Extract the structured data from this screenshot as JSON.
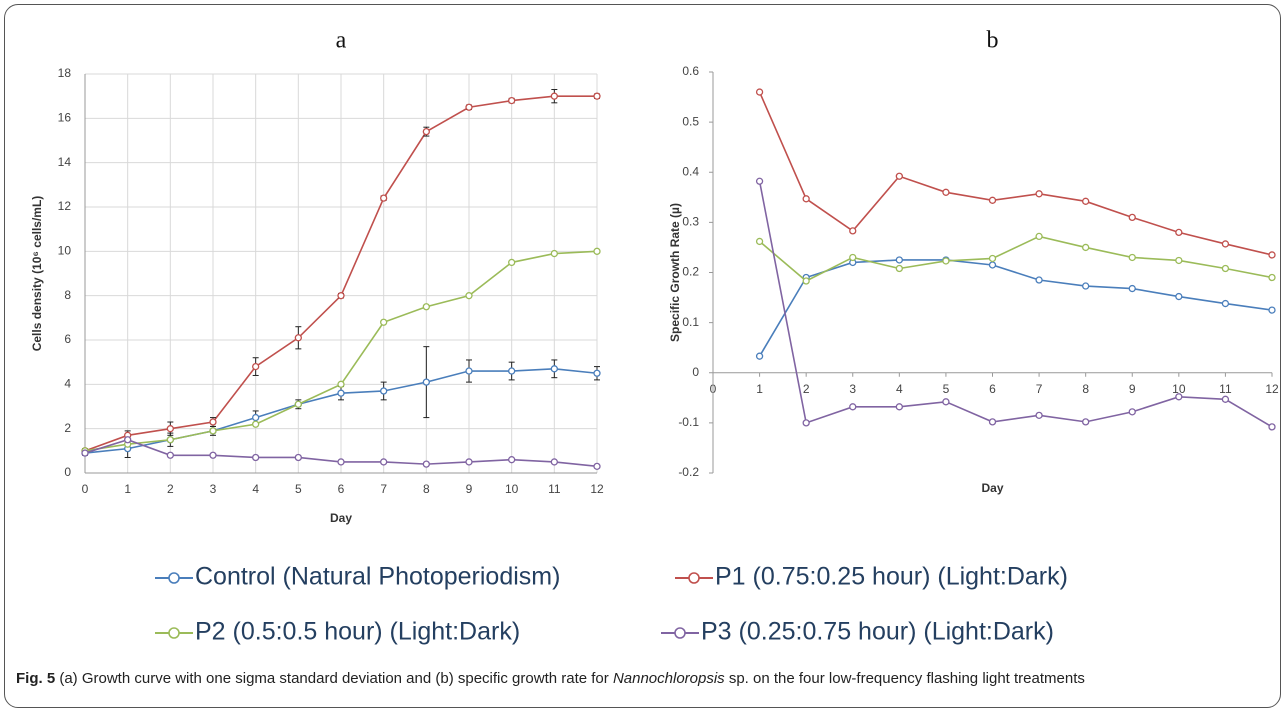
{
  "chart_data": [
    {
      "type": "line",
      "title": "a",
      "x_label": "Day",
      "y_label": "Cells density (10⁶ cells/mL)",
      "x": [
        0,
        1,
        2,
        3,
        4,
        5,
        6,
        7,
        8,
        9,
        10,
        11,
        12
      ],
      "xlim": [
        0,
        12
      ],
      "xticks": [
        0,
        1,
        2,
        3,
        4,
        5,
        6,
        7,
        8,
        9,
        10,
        11,
        12
      ],
      "ylim": [
        0,
        18
      ],
      "yticks": [
        0,
        2,
        4,
        6,
        8,
        10,
        12,
        14,
        16,
        18
      ],
      "grid": true,
      "series": [
        {
          "name": "Control (Natural Photoperiodism)",
          "color": "#4a7ebb",
          "values": [
            0.9,
            1.1,
            1.5,
            1.9,
            2.5,
            3.1,
            3.6,
            3.7,
            4.1,
            4.6,
            4.6,
            4.7,
            4.5
          ],
          "errors": [
            0.1,
            0.4,
            0.3,
            0.2,
            0.3,
            0.2,
            0.3,
            0.4,
            1.6,
            0.5,
            0.4,
            0.4,
            0.3
          ]
        },
        {
          "name": "P1 (0.75:0.25 hour) (Light:Dark)",
          "color": "#c0504d",
          "values": [
            1.0,
            1.7,
            2.0,
            2.3,
            4.8,
            6.1,
            8.0,
            12.4,
            15.4,
            16.5,
            16.8,
            17.0,
            17.0
          ],
          "errors": [
            0.1,
            0.2,
            0.3,
            0.2,
            0.4,
            0.5,
            0.1,
            0.1,
            0.2,
            0.1,
            0.1,
            0.3,
            0.1
          ]
        },
        {
          "name": "P2 (0.5:0.5 hour) (Light:Dark)",
          "color": "#9bbb59",
          "values": [
            1.0,
            1.3,
            1.5,
            1.9,
            2.2,
            3.1,
            4.0,
            6.8,
            7.5,
            8.0,
            9.5,
            9.9,
            10.0
          ]
        },
        {
          "name": "P3 (0.25:0.75 hour) (Light:Dark)",
          "color": "#8064a2",
          "values": [
            0.9,
            1.5,
            0.8,
            0.8,
            0.7,
            0.7,
            0.5,
            0.5,
            0.4,
            0.5,
            0.6,
            0.5,
            0.3
          ]
        }
      ]
    },
    {
      "type": "line",
      "title": "b",
      "x_label": "Day",
      "y_label": "Specific Growth Rate (µ)",
      "x": [
        1,
        2,
        3,
        4,
        5,
        6,
        7,
        8,
        9,
        10,
        11,
        12
      ],
      "xlim": [
        0,
        12
      ],
      "xticks": [
        0,
        1,
        2,
        3,
        4,
        5,
        6,
        7,
        8,
        9,
        10,
        11,
        12
      ],
      "ylim": [
        -0.2,
        0.6
      ],
      "yticks": [
        -0.2,
        -0.1,
        0,
        0.1,
        0.2,
        0.3,
        0.4,
        0.5,
        0.6
      ],
      "grid": false,
      "series": [
        {
          "color": "#4a7ebb",
          "values": [
            0.033,
            0.19,
            0.22,
            0.225,
            0.225,
            0.215,
            0.185,
            0.173,
            0.168,
            0.152,
            0.138,
            0.125
          ]
        },
        {
          "color": "#c0504d",
          "values": [
            0.56,
            0.347,
            0.283,
            0.392,
            0.36,
            0.344,
            0.357,
            0.342,
            0.31,
            0.28,
            0.257,
            0.235
          ]
        },
        {
          "color": "#9bbb59",
          "values": [
            0.262,
            0.183,
            0.23,
            0.208,
            0.223,
            0.228,
            0.272,
            0.25,
            0.23,
            0.224,
            0.208,
            0.19
          ]
        },
        {
          "color": "#8064a2",
          "values": [
            0.382,
            -0.1,
            -0.068,
            -0.068,
            -0.058,
            -0.098,
            -0.085,
            -0.098,
            -0.078,
            -0.048,
            -0.053,
            -0.108
          ]
        }
      ]
    }
  ],
  "caption": {
    "label": "Fig. 5",
    "text_before": "(a) Growth curve with one sigma standard deviation and (b) specific growth rate for ",
    "italic": "Nannochloropsis",
    "text_after": " sp. on the four low-frequency flashing light treatments"
  }
}
